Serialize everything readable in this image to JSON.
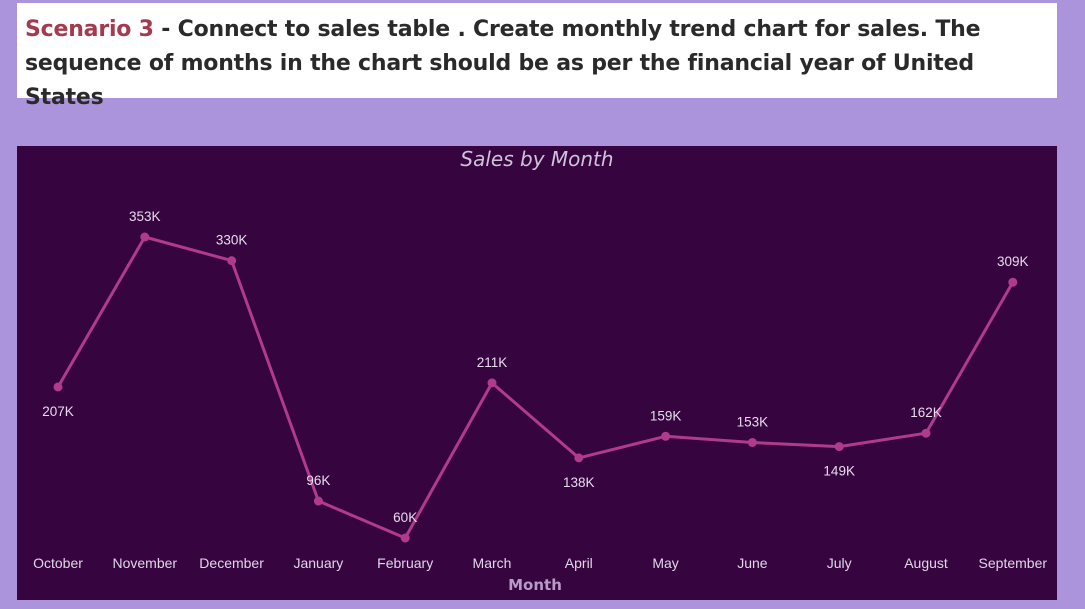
{
  "header": {
    "scenario_label": "Scenario 3",
    "description": " - Connect to sales table . Create monthly trend chart for sales. The sequence of months in the chart should be as per the financial year of United States"
  },
  "colors": {
    "background": "#ab94dc",
    "panel": "#36043f",
    "line": "#b03a8c",
    "scenario_label": "#a33a4e"
  },
  "chart_data": {
    "type": "line",
    "title": "Sales by Month",
    "xlabel": "Month",
    "ylabel": "",
    "categories": [
      "October",
      "November",
      "December",
      "January",
      "February",
      "March",
      "April",
      "May",
      "June",
      "July",
      "August",
      "September"
    ],
    "values": [
      207,
      353,
      330,
      96,
      60,
      211,
      138,
      159,
      153,
      149,
      162,
      309
    ],
    "value_labels": [
      "207K",
      "353K",
      "330K",
      "96K",
      "60K",
      "211K",
      "138K",
      "159K",
      "153K",
      "149K",
      "162K",
      "309K"
    ],
    "label_positions": [
      "below",
      "above",
      "above",
      "above",
      "above",
      "above",
      "below",
      "above",
      "above",
      "below",
      "above",
      "above"
    ],
    "unit": "K",
    "ylim": [
      60,
      353
    ],
    "grid": false,
    "legend": "none"
  }
}
